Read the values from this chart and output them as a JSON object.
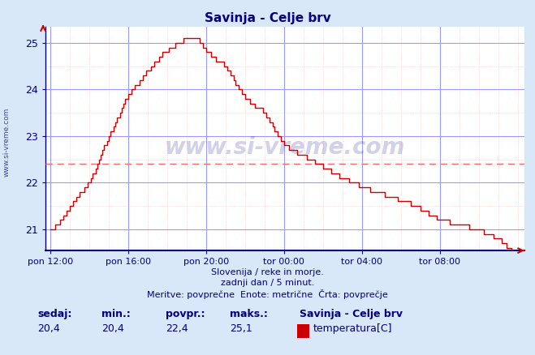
{
  "title": "Savinja - Celje brv",
  "title_color": "#000080",
  "bg_color": "#d8e8f8",
  "plot_bg_color": "#ffffff",
  "line_color": "#cc0000",
  "grid_color_major": "#9999ff",
  "grid_color_minor": "#ffcccc",
  "avg_line_color": "#ff6666",
  "avg_value": 22.4,
  "ylim_min": 20.55,
  "ylim_max": 25.35,
  "yticks": [
    21,
    22,
    23,
    24,
    25
  ],
  "tick_color": "#000080",
  "watermark": "www.si-vreme.com",
  "watermark_color": "#000080",
  "watermark_alpha": 0.18,
  "left_label": "www.si-vreme.com",
  "subtitle1": "Slovenija / reke in morje.",
  "subtitle2": "zadnji dan / 5 minut.",
  "subtitle3": "Meritve: povprečne  Enote: metrične  Črta: povprečje",
  "footer_color": "#000080",
  "footer_labels": [
    "sedaj:",
    "min.:",
    "povpr.:",
    "maks.:"
  ],
  "footer_values": [
    "20,4",
    "20,4",
    "22,4",
    "25,1"
  ],
  "footer_station": "Savinja - Celje brv",
  "footer_series": "temperatura[C]",
  "footer_swatch_color": "#cc0000",
  "xtick_labels": [
    "pon 12:00",
    "pon 16:00",
    "pon 20:00",
    "tor 00:00",
    "tor 04:00",
    "tor 08:00"
  ],
  "xtick_positions": [
    0,
    48,
    96,
    144,
    192,
    240
  ],
  "n_points": 289,
  "keypoints_x": [
    0,
    5,
    12,
    24,
    36,
    48,
    60,
    70,
    78,
    84,
    88,
    92,
    96,
    108,
    120,
    132,
    144,
    160,
    175,
    192,
    210,
    225,
    240,
    252,
    264,
    276,
    285,
    288
  ],
  "keypoints_y": [
    21.0,
    21.1,
    21.5,
    22.0,
    23.0,
    23.9,
    24.4,
    24.8,
    25.0,
    25.1,
    25.1,
    25.05,
    24.8,
    24.5,
    23.8,
    23.5,
    22.8,
    22.5,
    22.2,
    21.9,
    21.7,
    21.5,
    21.2,
    21.1,
    21.0,
    20.8,
    20.5,
    20.4
  ]
}
